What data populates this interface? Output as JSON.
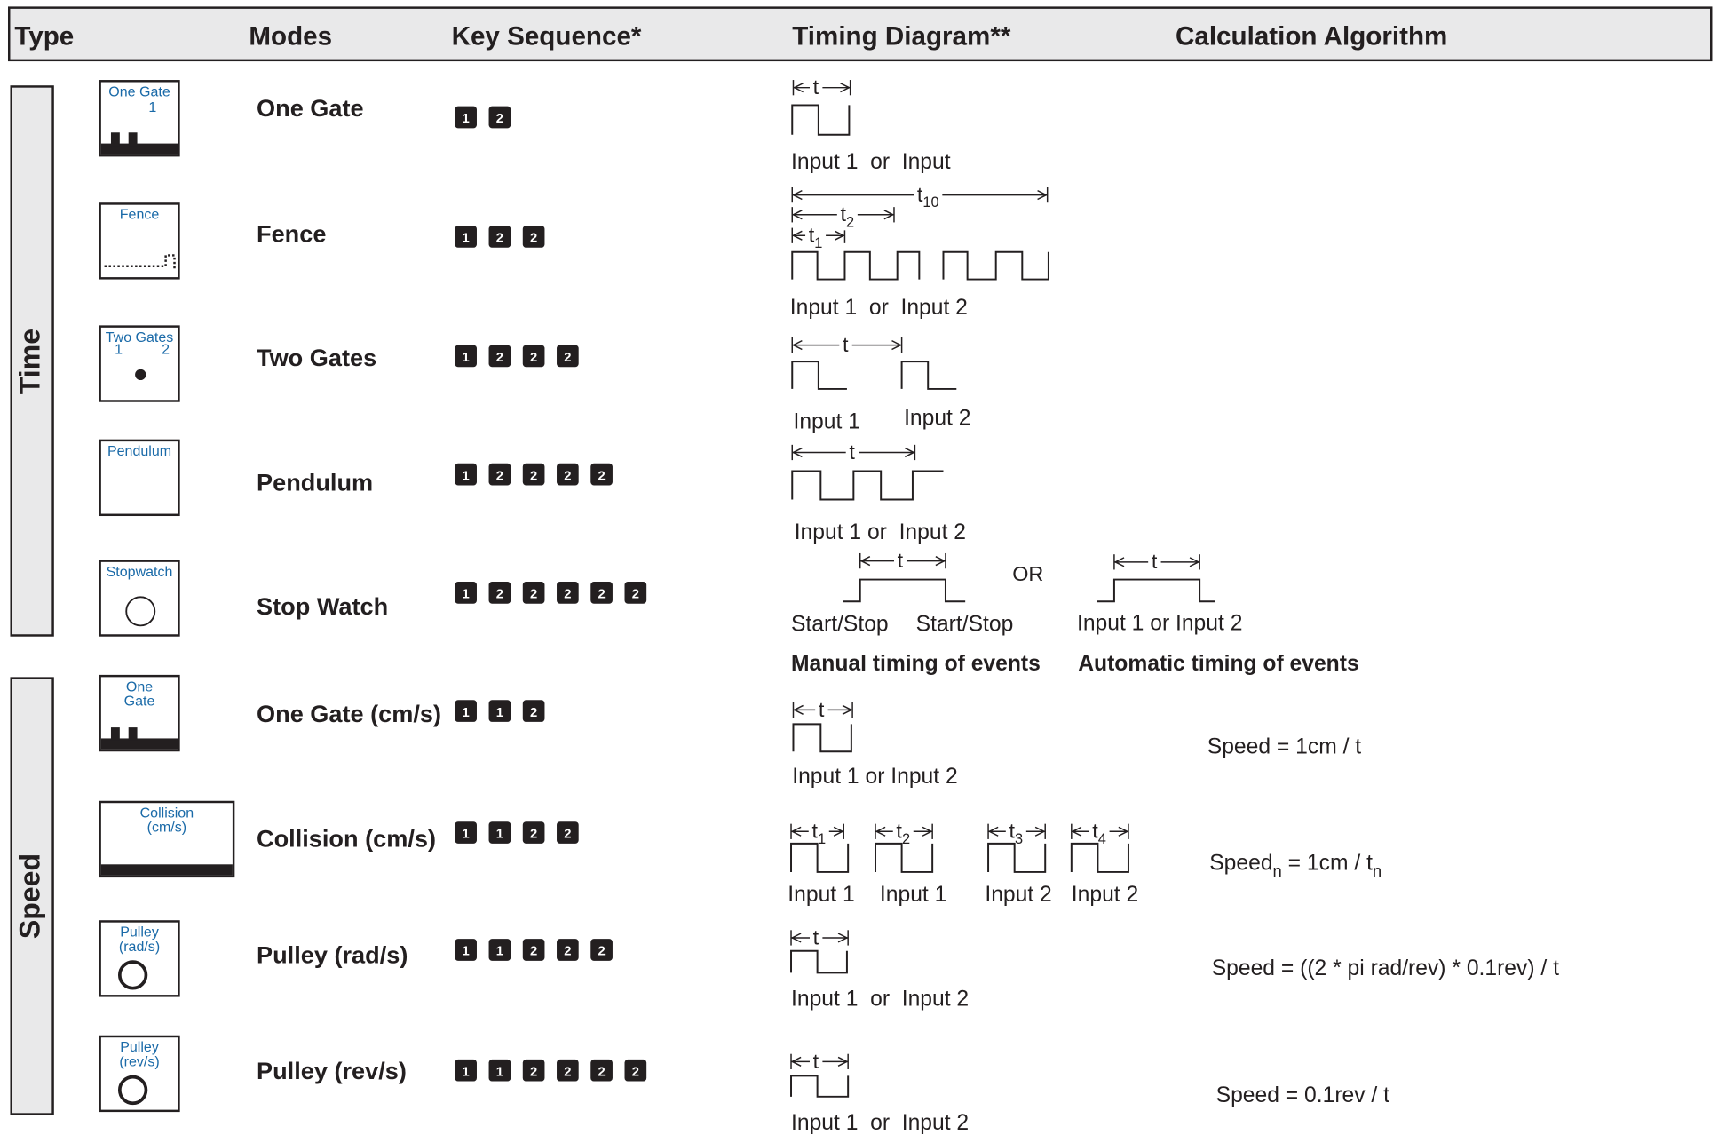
{
  "header": [
    "Type",
    "Modes",
    "Key Sequence*",
    "Timing Diagram**",
    "Calculation Algorithm"
  ],
  "groups": [
    "Time",
    "Speed"
  ],
  "rows": [
    {
      "icon": [
        "One Gate",
        "1"
      ],
      "mode": "One Gate",
      "keys": [
        "1",
        "2"
      ],
      "labels": [
        {
          "text": "t"
        }
      ],
      "captions": [
        "Input 1  or  Input"
      ]
    },
    {
      "icon": [
        "Fence"
      ],
      "mode": "Fence",
      "keys": [
        "1",
        "2",
        "2"
      ],
      "labels": [
        {
          "text": "t",
          "sub": "10"
        },
        {
          "text": "t",
          "sub": "2"
        },
        {
          "text": "t",
          "sub": "1"
        }
      ],
      "captions": [
        "Input 1  or  Input 2"
      ]
    },
    {
      "icon": [
        "Two Gates",
        "1",
        "2"
      ],
      "mode": "Two Gates",
      "keys": [
        "1",
        "2",
        "2",
        "2"
      ],
      "labels": [
        {
          "text": "t"
        }
      ],
      "captions": [
        "Input 1",
        "Input 2"
      ]
    },
    {
      "icon": [
        "Pendulum"
      ],
      "mode": "Pendulum",
      "keys": [
        "1",
        "2",
        "2",
        "2",
        "2"
      ],
      "labels": [
        {
          "text": "t"
        }
      ],
      "captions": [
        "Input 1 or  Input 2"
      ]
    },
    {
      "icon": [
        "Stopwatch"
      ],
      "mode": "Stop Watch",
      "keys": [
        "1",
        "2",
        "2",
        "2",
        "2",
        "2"
      ],
      "labels": [
        {
          "text": "t"
        },
        {
          "text": "OR"
        },
        {
          "text": "t"
        }
      ],
      "captions": [
        "Start/Stop",
        "Start/Stop",
        "Input 1 or Input 2"
      ],
      "notes": [
        "Manual timing of events",
        "Automatic timing of events"
      ]
    },
    {
      "icon": [
        "One",
        "Gate"
      ],
      "mode": "One Gate (cm/s)",
      "keys": [
        "1",
        "1",
        "2"
      ],
      "labels": [
        {
          "text": "t"
        }
      ],
      "captions": [
        "Input 1 or Input 2"
      ],
      "algorithm": [
        {
          "text": "Speed = 1cm / t"
        }
      ]
    },
    {
      "icon": [
        "Collision",
        "(cm/s)"
      ],
      "mode": "Collision (cm/s)",
      "keys": [
        "1",
        "1",
        "2",
        "2"
      ],
      "labels": [
        {
          "text": "t",
          "sub": "1"
        },
        {
          "text": "t",
          "sub": "2"
        },
        {
          "text": "t",
          "sub": "3"
        },
        {
          "text": "t",
          "sub": "4"
        }
      ],
      "captions": [
        "Input 1",
        "Input 1",
        "Input 2",
        "Input 2"
      ],
      "algorithm": [
        {
          "text": "Speed",
          "sub": "n"
        },
        {
          "text": " = 1cm / t",
          "sub": "n"
        }
      ]
    },
    {
      "icon": [
        "Pulley",
        "(rad/s)"
      ],
      "mode": "Pulley (rad/s)",
      "keys": [
        "1",
        "1",
        "2",
        "2",
        "2"
      ],
      "labels": [
        {
          "text": "t"
        }
      ],
      "captions": [
        "Input 1  or  Input 2"
      ],
      "algorithm": [
        {
          "text": "Speed = ((2 * pi rad/rev) * 0.1rev) / t"
        }
      ]
    },
    {
      "icon": [
        "Pulley",
        "(rev/s)"
      ],
      "mode": "Pulley (rev/s)",
      "keys": [
        "1",
        "1",
        "2",
        "2",
        "2",
        "2"
      ],
      "labels": [
        {
          "text": "t"
        }
      ],
      "captions": [
        "Input 1  or  Input 2"
      ],
      "algorithm": [
        {
          "text": "Speed = 0.1rev / t"
        }
      ]
    }
  ]
}
